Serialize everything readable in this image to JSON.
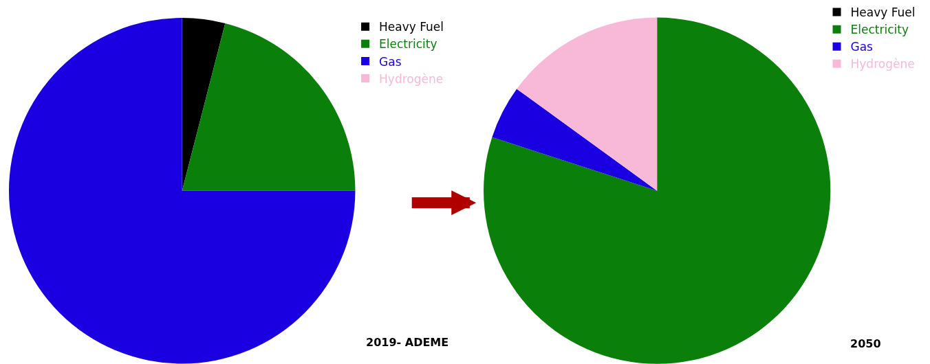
{
  "chart_data": [
    {
      "type": "pie",
      "categories": [
        "Heavy Fuel",
        "Electricity",
        "Gas",
        "Hydrogène"
      ],
      "values": [
        4,
        21,
        75,
        0
      ],
      "colors": [
        "#000000",
        "#0a800a",
        "#1a00e0",
        "#f8b8d8"
      ],
      "legend": "top right",
      "annotations": [
        "2019- ADEME"
      ]
    },
    {
      "type": "pie",
      "categories": [
        "Heavy Fuel",
        "Electricity",
        "Gas",
        "Hydrogène"
      ],
      "values": [
        0,
        80,
        5,
        15
      ],
      "colors": [
        "#000000",
        "#0a800a",
        "#1a00e0",
        "#f8b8d8"
      ],
      "legend": "top right",
      "annotations": [
        "2050"
      ]
    }
  ]
}
